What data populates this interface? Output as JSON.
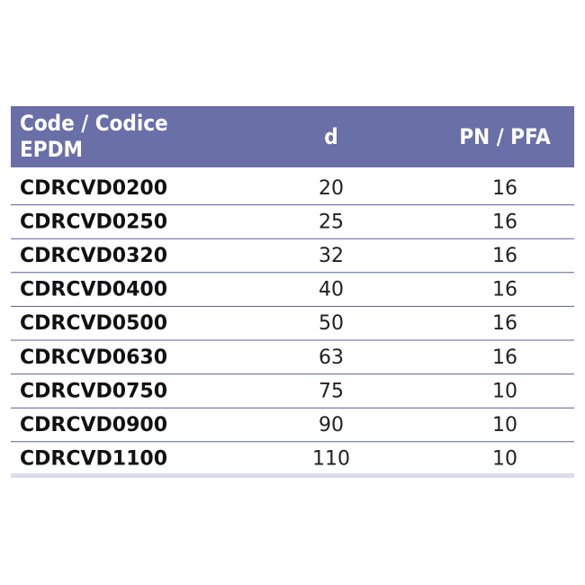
{
  "table": {
    "header": [
      [
        "Code / Codice",
        "EPDM"
      ],
      "d",
      "PN / PFA"
    ],
    "rows": [
      [
        "CDRCVD0200",
        20,
        16
      ],
      [
        "CDRCVD0250",
        25,
        16
      ],
      [
        "CDRCVD0320",
        32,
        16
      ],
      [
        "CDRCVD0400",
        40,
        16
      ],
      [
        "CDRCVD0500",
        50,
        16
      ],
      [
        "CDRCVD0630",
        63,
        16
      ],
      [
        "CDRCVD0750",
        75,
        10
      ],
      [
        "CDRCVD0900",
        90,
        10
      ],
      [
        "CDRCVD1100",
        110,
        10
      ]
    ]
  }
}
